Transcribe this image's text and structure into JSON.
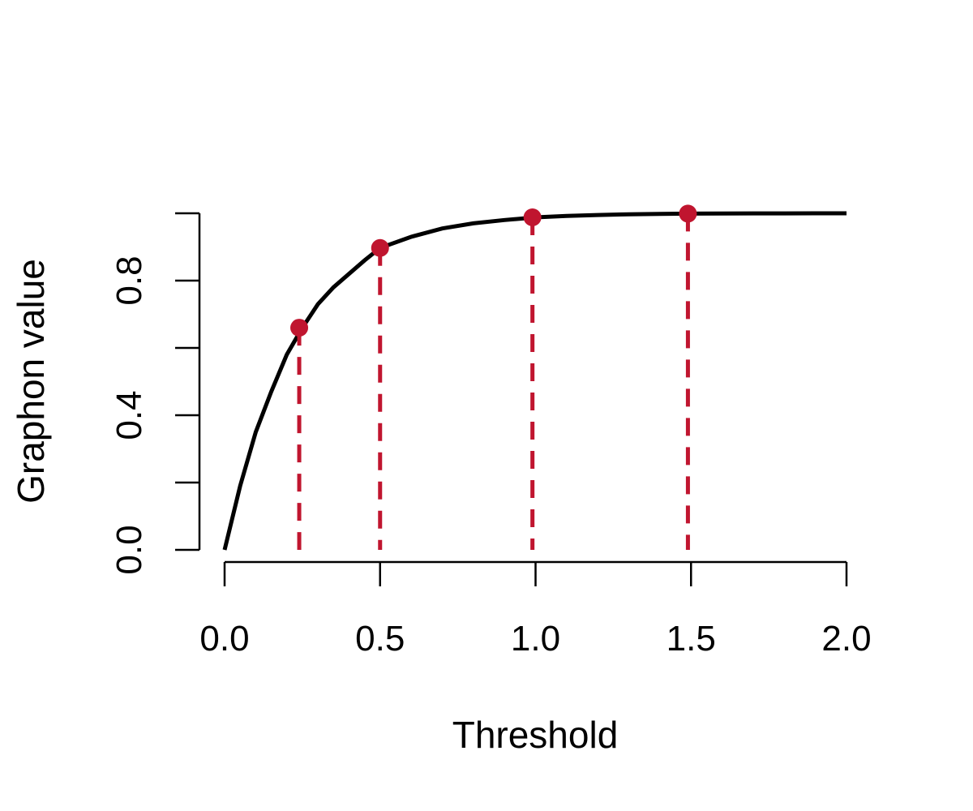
{
  "chart_data": {
    "type": "line",
    "title": "",
    "xlabel": "Threshold",
    "ylabel": "Graphon value",
    "xlim": [
      0,
      2
    ],
    "ylim": [
      0,
      1
    ],
    "x_ticks": [
      0,
      0.5,
      1,
      1.5,
      2
    ],
    "x_tick_labels": [
      "0.0",
      "0.5",
      "1.0",
      "1.5",
      "2.0"
    ],
    "y_ticks": [
      0,
      0.2,
      0.4,
      0.6,
      0.8,
      1.0
    ],
    "y_tick_labels": [
      "0.0",
      "",
      "0.4",
      "",
      "0.8",
      ""
    ],
    "grid": false,
    "series": [
      {
        "style": "solid-line",
        "color": "#000000",
        "x": [
          0,
          0.05,
          0.1,
          0.15,
          0.2,
          0.25,
          0.3,
          0.35,
          0.4,
          0.45,
          0.5,
          0.6,
          0.7,
          0.8,
          0.9,
          1.0,
          1.1,
          1.2,
          1.3,
          1.4,
          1.5,
          1.6,
          1.7,
          1.8,
          1.9,
          2.0
        ],
        "y": [
          0,
          0.19,
          0.35,
          0.47,
          0.58,
          0.66,
          0.73,
          0.78,
          0.82,
          0.86,
          0.897,
          0.93,
          0.955,
          0.97,
          0.98,
          0.988,
          0.992,
          0.995,
          0.997,
          0.998,
          0.999,
          0.9995,
          0.9997,
          0.9998,
          0.9999,
          1.0
        ]
      },
      {
        "style": "points-with-dashed-drop-lines",
        "color": "#C0152F",
        "x": [
          0.24,
          0.5,
          0.99,
          1.49
        ],
        "y": [
          0.66,
          0.897,
          0.988,
          0.999
        ]
      }
    ]
  }
}
